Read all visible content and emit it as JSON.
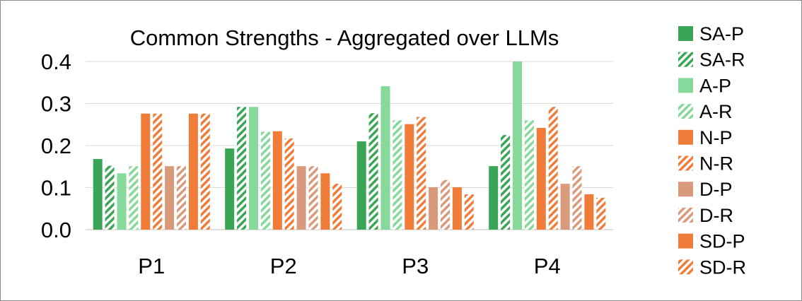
{
  "chart_data": {
    "type": "bar",
    "title": "Common Strengths - Aggregated over LLMs",
    "xlabel": "",
    "ylabel": "",
    "categories": [
      "P1",
      "P2",
      "P3",
      "P4"
    ],
    "ylim": [
      0,
      0.4
    ],
    "yticks": [
      "0.0",
      "0.1",
      "0.2",
      "0.3",
      "0.4"
    ],
    "grid": true,
    "legend_position": "right",
    "series": [
      {
        "name": "SA-P",
        "color": "#3aa655",
        "pattern": "solid",
        "values": [
          0.168,
          0.193,
          0.21,
          0.151
        ]
      },
      {
        "name": "SA-R",
        "color": "#3aa655",
        "pattern": "hatch",
        "values": [
          0.152,
          0.292,
          0.277,
          0.225
        ]
      },
      {
        "name": "A-P",
        "color": "#86d99b",
        "pattern": "solid",
        "values": [
          0.134,
          0.292,
          0.341,
          0.4
        ]
      },
      {
        "name": "A-R",
        "color": "#86d99b",
        "pattern": "hatch",
        "values": [
          0.151,
          0.233,
          0.26,
          0.26
        ]
      },
      {
        "name": "N-P",
        "color": "#f07c3a",
        "pattern": "solid",
        "values": [
          0.276,
          0.234,
          0.251,
          0.242
        ]
      },
      {
        "name": "N-R",
        "color": "#f07c3a",
        "pattern": "hatch",
        "values": [
          0.276,
          0.217,
          0.268,
          0.292
        ]
      },
      {
        "name": "D-P",
        "color": "#d99a7c",
        "pattern": "solid",
        "values": [
          0.151,
          0.151,
          0.101,
          0.109
        ]
      },
      {
        "name": "D-R",
        "color": "#d99a7c",
        "pattern": "hatch",
        "values": [
          0.151,
          0.151,
          0.118,
          0.151
        ]
      },
      {
        "name": "SD-P",
        "color": "#f07c3a",
        "pattern": "solid",
        "values": [
          0.276,
          0.134,
          0.101,
          0.084
        ]
      },
      {
        "name": "SD-R",
        "color": "#f07c3a",
        "pattern": "hatch",
        "values": [
          0.276,
          0.109,
          0.084,
          0.076
        ]
      }
    ]
  }
}
